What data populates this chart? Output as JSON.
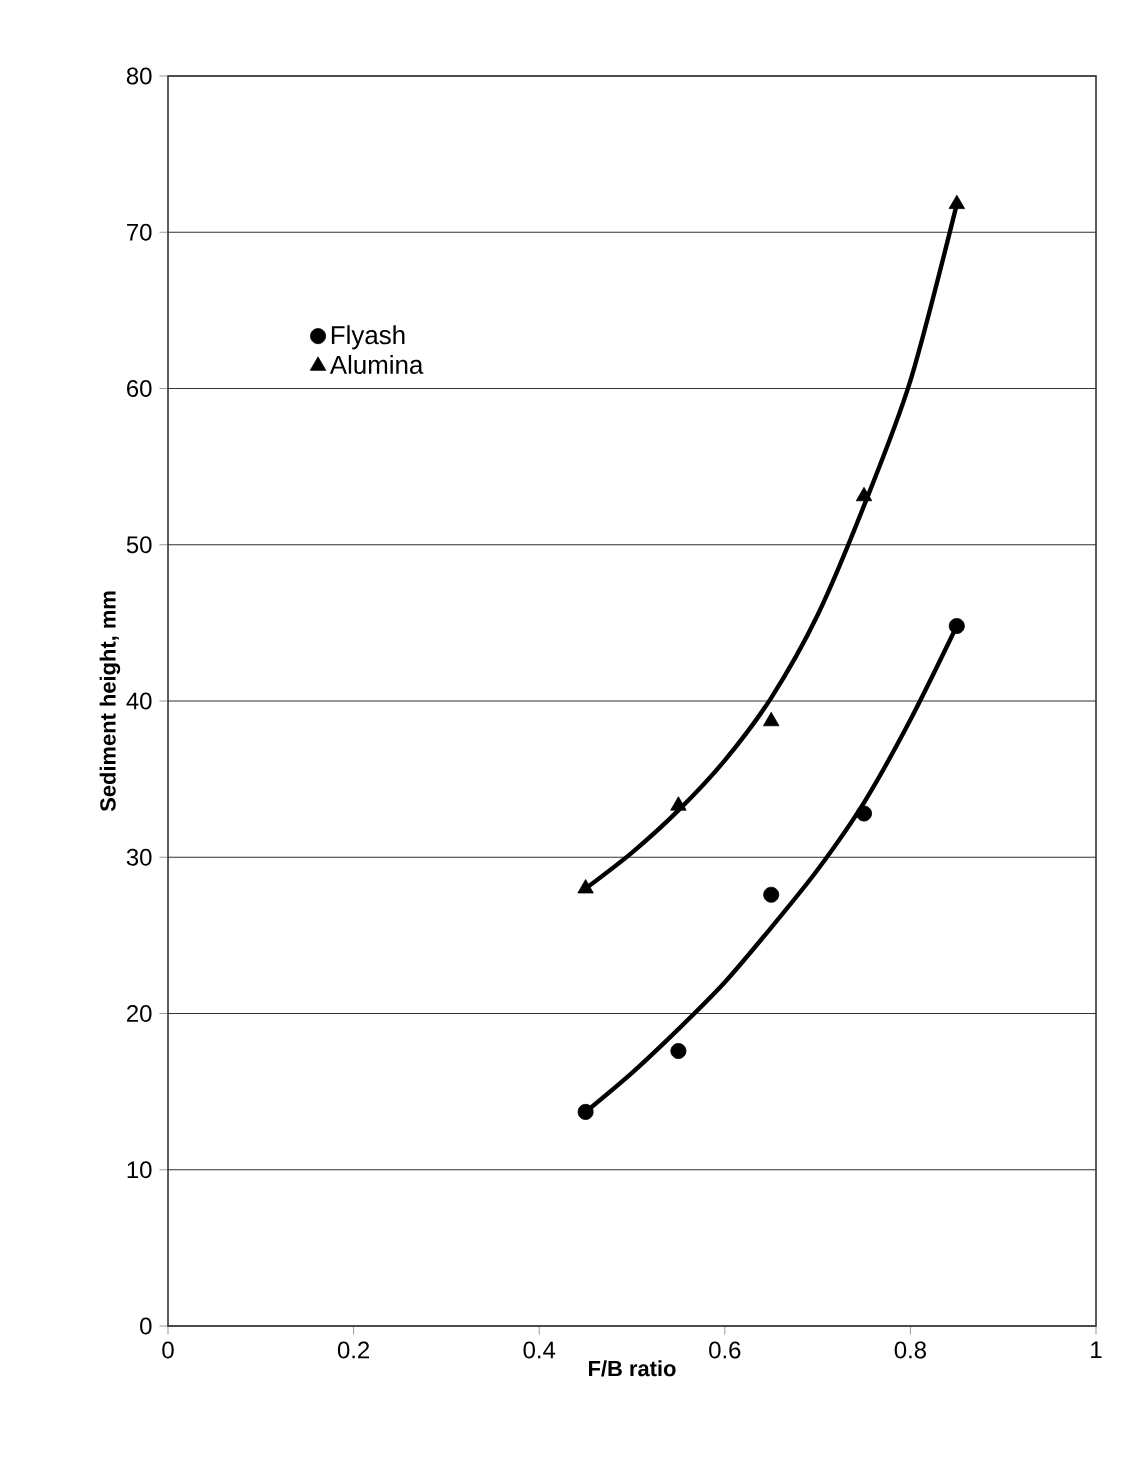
{
  "chart_data": {
    "type": "scatter",
    "xlabel": "F/B ratio",
    "ylabel": "Sediment height, mm",
    "xlim": [
      0,
      1
    ],
    "xticks": [
      0,
      0.2,
      0.4,
      0.6,
      0.8,
      1
    ],
    "ylim": [
      0,
      80
    ],
    "yticks": [
      0,
      10,
      20,
      30,
      40,
      50,
      60,
      70,
      80
    ],
    "grid": "y",
    "legend": "left",
    "series": [
      {
        "name": "Flyash",
        "color": "#000000",
        "marker": "circle",
        "x": [
          0.45,
          0.55,
          0.65,
          0.75,
          0.85
        ],
        "values": [
          13.7,
          17.6,
          27.6,
          32.8,
          44.8
        ]
      },
      {
        "name": "Alumina",
        "color": "#000000",
        "marker": "triangle",
        "x": [
          0.45,
          0.55,
          0.65,
          0.75,
          0.85
        ],
        "values": [
          28,
          33.3,
          38.7,
          53.1,
          71.8
        ]
      },
      {
        "type": "line",
        "color": "#000000",
        "x": [
          0.45,
          0.5,
          0.55,
          0.6,
          0.65,
          0.7,
          0.75,
          0.8,
          0.85
        ],
        "values": [
          13.7,
          16.2,
          19,
          22,
          25.5,
          29.2,
          33.5,
          38.8,
          44.8
        ]
      },
      {
        "type": "line",
        "color": "#000000",
        "x": [
          0.45,
          0.5,
          0.55,
          0.6,
          0.65,
          0.7,
          0.75,
          0.8,
          0.85
        ],
        "values": [
          28,
          30.3,
          33,
          36.2,
          40.2,
          45.5,
          52.5,
          60.5,
          71.8
        ]
      }
    ]
  }
}
